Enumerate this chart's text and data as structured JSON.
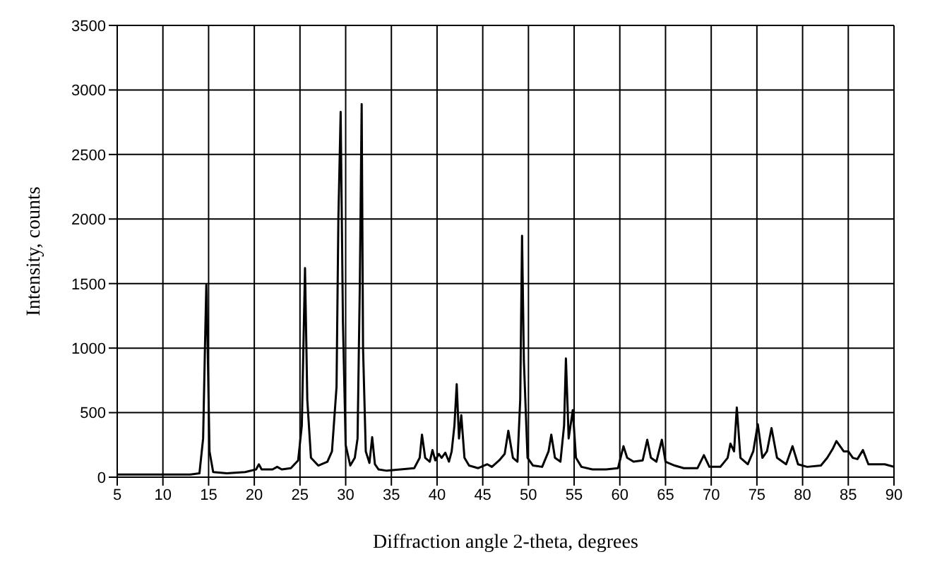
{
  "chart_data": {
    "type": "line",
    "xlabel": "Diffraction angle 2-theta, degrees",
    "ylabel": "Intensity, counts",
    "xlim": [
      5,
      90
    ],
    "xticks": [
      5,
      10,
      15,
      20,
      25,
      30,
      35,
      40,
      45,
      50,
      55,
      60,
      65,
      70,
      75,
      80,
      85,
      90
    ],
    "ylim": [
      0,
      3500
    ],
    "yticks": [
      0,
      500,
      1000,
      1500,
      2000,
      2500,
      3000,
      3500
    ],
    "grid": true,
    "marker": "none",
    "series": [
      {
        "color": "#000000",
        "x": [
          5,
          8,
          11,
          13,
          14,
          14.4,
          14.6,
          14.75,
          14.9,
          15.1,
          15.5,
          17,
          19,
          20.2,
          20.5,
          20.8,
          22,
          22.5,
          23,
          24,
          24.8,
          25.2,
          25.4,
          25.55,
          25.8,
          26.2,
          27,
          28,
          28.5,
          29,
          29.2,
          29.45,
          29.7,
          30,
          30.5,
          31,
          31.3,
          31.55,
          31.75,
          31.9,
          32.2,
          32.6,
          32.9,
          33.2,
          33.6,
          34.5,
          36,
          37.5,
          38.1,
          38.35,
          38.7,
          39.2,
          39.5,
          39.8,
          40.2,
          40.5,
          40.9,
          41.3,
          41.6,
          41.9,
          42.15,
          42.4,
          42.65,
          43,
          43.5,
          44.5,
          45.5,
          46,
          46.8,
          47.4,
          47.8,
          48.3,
          48.8,
          49.1,
          49.3,
          49.5,
          49.9,
          50.5,
          51.5,
          52.2,
          52.5,
          52.9,
          53.5,
          53.9,
          54.1,
          54.4,
          54.85,
          55.2,
          55.8,
          57,
          58.5,
          59.8,
          60.4,
          60.8,
          61.5,
          62.5,
          63,
          63.4,
          64,
          64.6,
          65,
          66,
          67,
          68.5,
          69.2,
          69.8,
          71,
          71.8,
          72.1,
          72.5,
          72.8,
          73.2,
          74,
          74.6,
          75.1,
          75.6,
          76.1,
          76.6,
          77.2,
          78.2,
          78.9,
          79.5,
          80.5,
          82,
          82.7,
          83.3,
          83.7,
          84.5,
          85,
          85.5,
          86,
          86.6,
          87.2,
          88,
          89,
          90
        ],
        "values": [
          20,
          20,
          20,
          20,
          30,
          300,
          1000,
          1490,
          1000,
          200,
          40,
          30,
          40,
          60,
          100,
          60,
          60,
          80,
          60,
          70,
          130,
          400,
          1100,
          1620,
          600,
          150,
          90,
          120,
          200,
          700,
          2000,
          2830,
          1200,
          250,
          90,
          150,
          300,
          1500,
          2890,
          1000,
          200,
          110,
          310,
          100,
          60,
          50,
          60,
          70,
          150,
          330,
          150,
          120,
          210,
          130,
          180,
          150,
          190,
          120,
          200,
          400,
          720,
          300,
          480,
          150,
          90,
          70,
          100,
          80,
          130,
          180,
          360,
          150,
          120,
          600,
          1870,
          900,
          150,
          90,
          80,
          200,
          330,
          150,
          120,
          400,
          920,
          300,
          520,
          150,
          80,
          60,
          60,
          70,
          240,
          150,
          120,
          130,
          290,
          150,
          120,
          290,
          120,
          90,
          70,
          70,
          170,
          80,
          80,
          150,
          260,
          200,
          540,
          150,
          100,
          200,
          410,
          150,
          200,
          380,
          150,
          100,
          240,
          100,
          80,
          90,
          150,
          220,
          280,
          200,
          200,
          150,
          140,
          210,
          100,
          100,
          100,
          80
        ]
      }
    ]
  }
}
